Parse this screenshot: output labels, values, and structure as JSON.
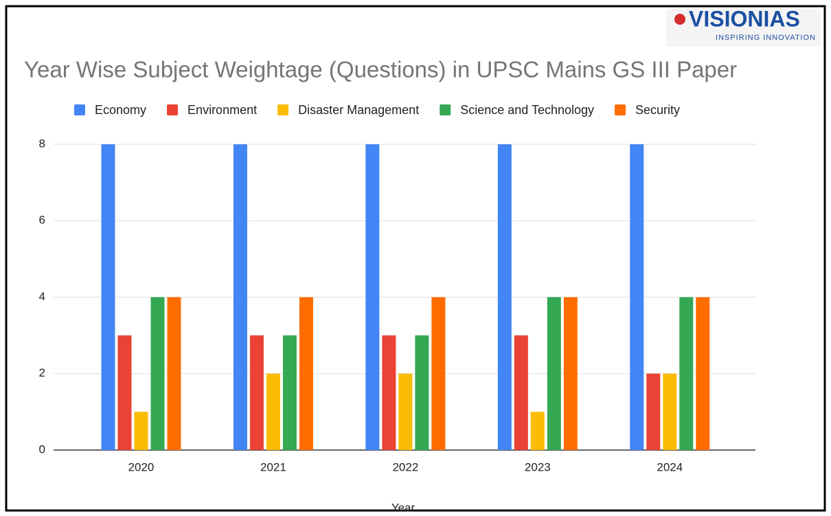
{
  "logo": {
    "name": "VISIONIAS",
    "tagline": "INSPIRING INNOVATION"
  },
  "chart_data": {
    "type": "bar",
    "title": "Year Wise Subject Weightage (Questions) in UPSC Mains GS III Paper",
    "x_label": "Year",
    "categories": [
      "2020",
      "2021",
      "2022",
      "2023",
      "2024"
    ],
    "series": [
      {
        "name": "Economy",
        "color": "#4285f4",
        "values": [
          8,
          8,
          8,
          8,
          8
        ]
      },
      {
        "name": "Environment",
        "color": "#ea4335",
        "values": [
          3,
          3,
          3,
          3,
          2
        ]
      },
      {
        "name": "Disaster Management",
        "color": "#fbbc04",
        "values": [
          1,
          2,
          2,
          1,
          2
        ]
      },
      {
        "name": "Science and Technology",
        "color": "#34a853",
        "values": [
          4,
          3,
          3,
          4,
          4
        ]
      },
      {
        "name": "Security",
        "color": "#ff6d01",
        "values": [
          4,
          4,
          4,
          4,
          4
        ]
      }
    ],
    "ylim": [
      0,
      8
    ],
    "yticks": [
      0,
      2,
      4,
      6,
      8
    ],
    "grid": true,
    "legend": "top"
  }
}
